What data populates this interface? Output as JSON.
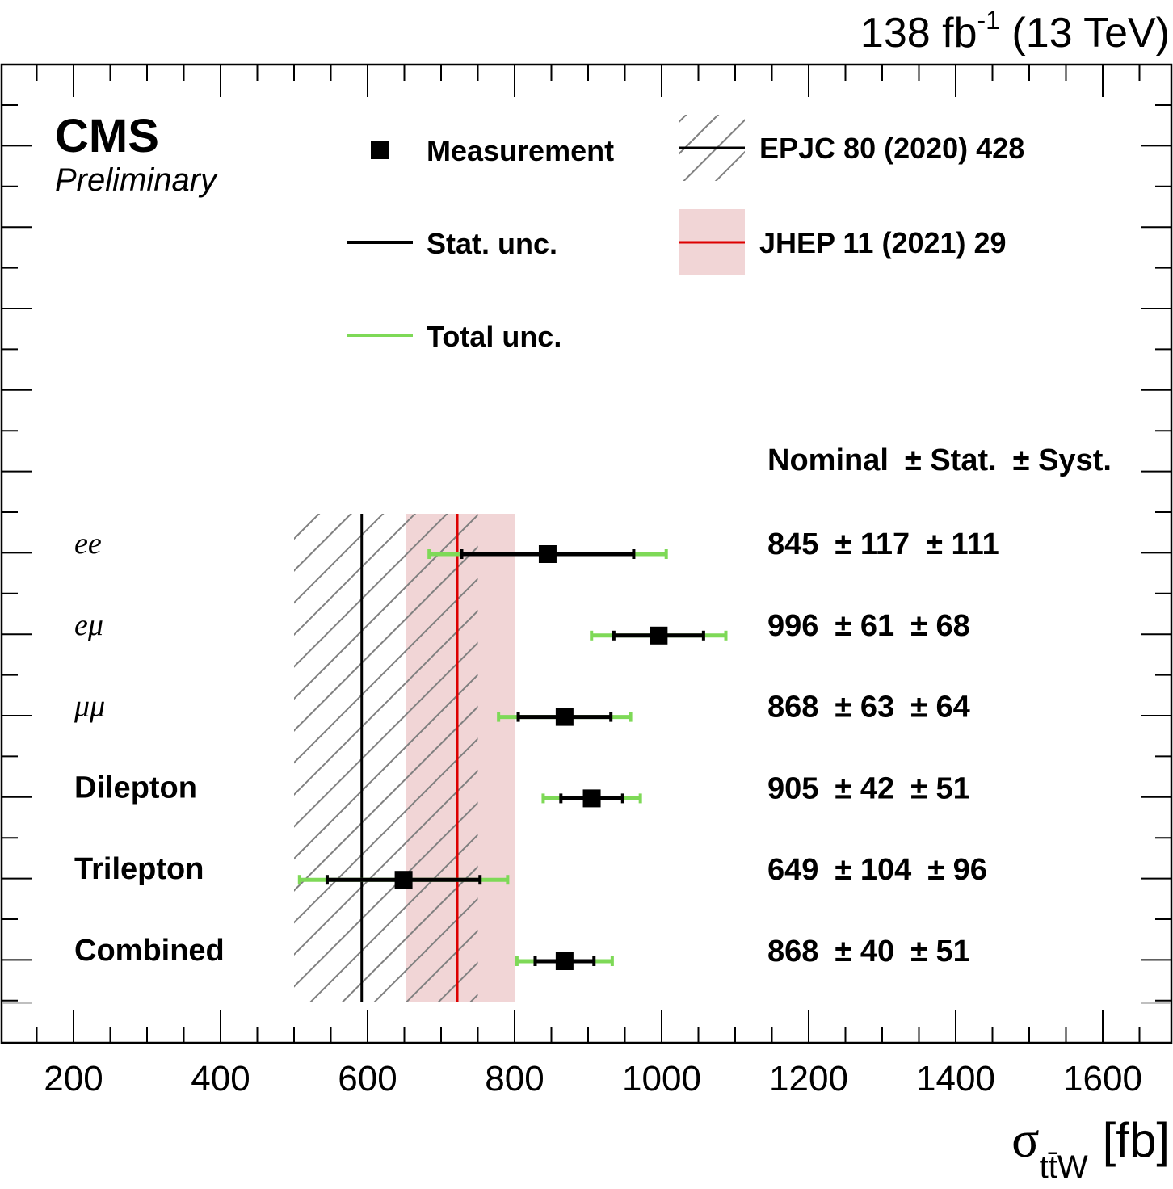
{
  "chart_data": {
    "type": "forest",
    "lumi_label": {
      "value": "138",
      "unit": "fb",
      "exponent": "-1",
      "energy": "(13 TeV)"
    },
    "experiment": "CMS",
    "status": "Preliminary",
    "xlabel": {
      "symbol": "σ",
      "subscript": "tt̄W",
      "unit": "[fb]"
    },
    "xlim": [
      100,
      1700
    ],
    "xticks": [
      200,
      400,
      600,
      800,
      1000,
      1200,
      1400,
      1600
    ],
    "legend": {
      "measurement": "Measurement",
      "stat": "Stat. unc.",
      "total": "Total unc.",
      "theory1": "EPJC 80 (2020) 428",
      "theory2": "JHEP 11 (2021) 29"
    },
    "theory": [
      {
        "name": "EPJC 80 (2020) 428",
        "central": 592,
        "low": 500,
        "high": 750,
        "style": "hatched"
      },
      {
        "name": "JHEP 11 (2021) 29",
        "central": 722,
        "low": 652,
        "high": 800,
        "style": "band"
      }
    ],
    "table_header": {
      "nominal": "Nominal",
      "stat": "± Stat.",
      "syst": "± Syst."
    },
    "rows": [
      {
        "label": "ee",
        "italic": true,
        "nominal": 845,
        "stat": 117,
        "syst": 111
      },
      {
        "label": "eμ",
        "italic": true,
        "nominal": 996,
        "stat": 61,
        "syst": 68
      },
      {
        "label": "μμ",
        "italic": true,
        "nominal": 868,
        "stat": 63,
        "syst": 64
      },
      {
        "label": "Dilepton",
        "italic": false,
        "nominal": 905,
        "stat": 42,
        "syst": 51
      },
      {
        "label": "Trilepton",
        "italic": false,
        "nominal": 649,
        "stat": 104,
        "syst": 96
      },
      {
        "label": "Combined",
        "italic": false,
        "nominal": 868,
        "stat": 40,
        "syst": 51
      }
    ],
    "colors": {
      "stat": "#000000",
      "total": "#7ed957",
      "theory2_line": "#dd0000",
      "theory2_band": "#f1d5d6",
      "hatch": "#808080"
    }
  }
}
